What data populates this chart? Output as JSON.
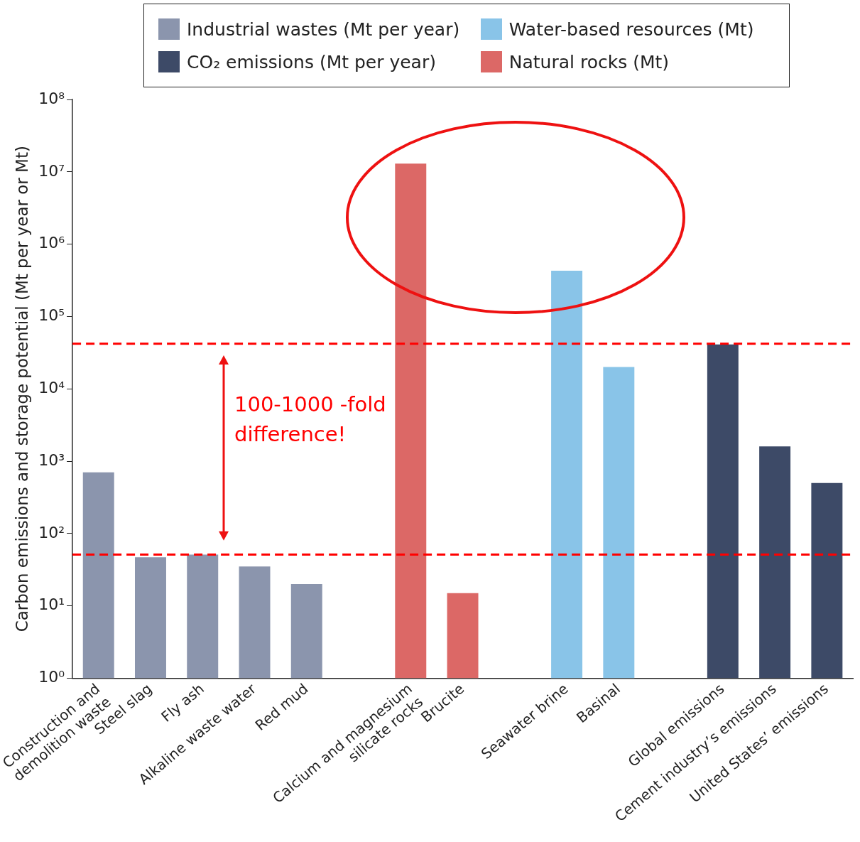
{
  "chart_data": {
    "type": "bar",
    "ylabel": "Carbon emissions and storage potential (Mt per year or Mt)",
    "categories": [
      "Construction and demolition waste",
      "Steel slag",
      "Fly ash",
      "Alkaline waste water",
      "Red mud",
      null,
      "Calcium and magnesium silicate rocks",
      "Brucite",
      null,
      "Seawater brine",
      "Basinal",
      null,
      "Global emissions",
      "Cement industry’s emissions",
      "United States’ emissions"
    ],
    "series": [
      {
        "name": "Industrial wastes (Mt per year)",
        "color": "#8b95ad",
        "values": [
          700,
          47,
          51,
          35,
          20,
          null,
          null,
          null,
          null,
          null,
          null,
          null,
          null,
          null,
          null
        ]
      },
      {
        "name": "CO₂ emissions (Mt per year)",
        "color": "#3d4a67",
        "values": [
          null,
          null,
          null,
          null,
          null,
          null,
          null,
          null,
          null,
          null,
          null,
          null,
          41000,
          1600,
          500
        ]
      },
      {
        "name": "Water-based resources (Mt)",
        "color": "#89c4e8",
        "values": [
          null,
          null,
          null,
          null,
          null,
          null,
          null,
          null,
          null,
          430000,
          20000,
          null,
          null,
          null,
          null
        ]
      },
      {
        "name": "Natural rocks (Mt)",
        "color": "#dc6866",
        "values": [
          null,
          null,
          null,
          null,
          null,
          null,
          13000000,
          15,
          null,
          null,
          null,
          null,
          null,
          null,
          null
        ]
      }
    ],
    "log": "y",
    "ylim": [
      1,
      100000000
    ],
    "yticks": [
      {
        "value": 1,
        "label": "10⁰"
      },
      {
        "value": 10,
        "label": "10¹"
      },
      {
        "value": 100,
        "label": "10²"
      },
      {
        "value": 1000,
        "label": "10³"
      },
      {
        "value": 10000,
        "label": "10⁴"
      },
      {
        "value": 100000,
        "label": "10⁵"
      },
      {
        "value": 1000000,
        "label": "10⁶"
      },
      {
        "value": 10000000,
        "label": "10⁷"
      },
      {
        "value": 100000000,
        "label": "10⁸"
      }
    ],
    "ref_lines": [
      {
        "axis": "y",
        "value": 42000,
        "color": "#ff0000",
        "line_style": "dashed"
      },
      {
        "axis": "y",
        "value": 51,
        "color": "#ff0000",
        "line_style": "dashed"
      }
    ],
    "annotations": [
      "100-1000 -fold difference!"
    ],
    "grid": false,
    "legend": "top"
  }
}
